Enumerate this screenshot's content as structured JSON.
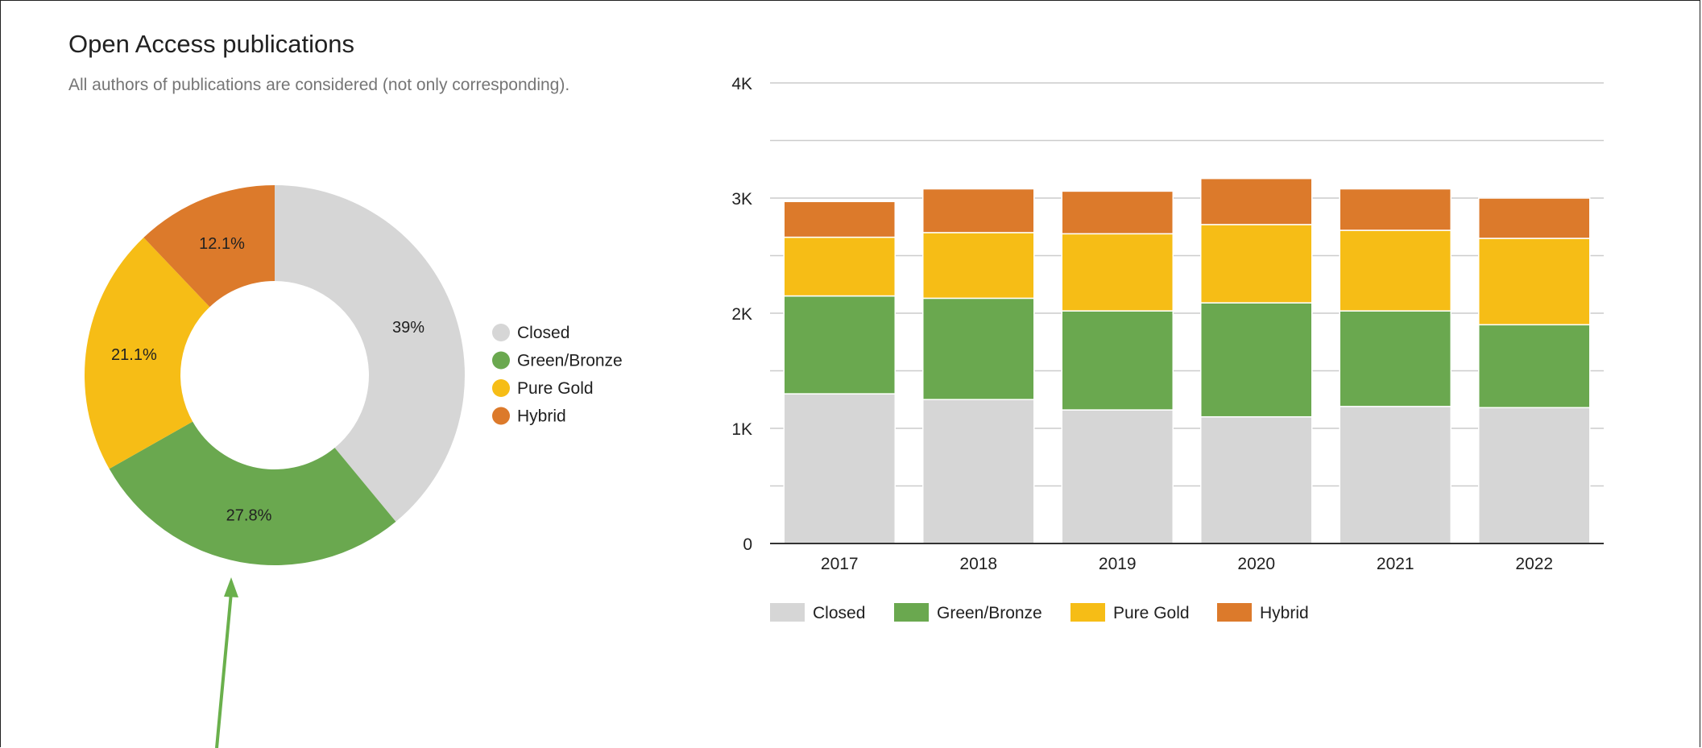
{
  "header": {
    "title": "Open Access publications",
    "subtitle": "All authors of publications are considered (not only corresponding)."
  },
  "colors": {
    "Closed": "#d6d6d6",
    "Green/Bronze": "#6aa84f",
    "Pure Gold": "#f6bd16",
    "Hybrid": "#dc7a2b",
    "arrow": "#6ab04c",
    "gridline": "#cccccc",
    "axis": "#333333"
  },
  "chart_data": [
    {
      "type": "pie",
      "labels": [
        "Closed",
        "Green/Bronze",
        "Pure Gold",
        "Hybrid"
      ],
      "values": [
        39,
        27.8,
        21.1,
        12.1
      ],
      "value_labels": [
        "39%",
        "27.8%",
        "21.1%",
        "12.1%"
      ],
      "donut": true,
      "legend": "right"
    },
    {
      "type": "bar",
      "stacked": true,
      "categories": [
        "2017",
        "2018",
        "2019",
        "2020",
        "2021",
        "2022"
      ],
      "series": [
        {
          "name": "Closed",
          "values": [
            1300,
            1250,
            1160,
            1100,
            1190,
            1180
          ]
        },
        {
          "name": "Green/Bronze",
          "values": [
            850,
            880,
            860,
            990,
            830,
            720
          ]
        },
        {
          "name": "Pure Gold",
          "values": [
            510,
            570,
            670,
            680,
            700,
            750
          ]
        },
        {
          "name": "Hybrid",
          "values": [
            310,
            380,
            370,
            400,
            360,
            350
          ]
        }
      ],
      "ylim": [
        0,
        4000
      ],
      "yticks": [
        0,
        1000,
        2000,
        3000,
        4000
      ],
      "ytick_labels": [
        "0",
        "1K",
        "2K",
        "3K",
        "4K"
      ],
      "grid": true,
      "legend": "bottom"
    }
  ]
}
